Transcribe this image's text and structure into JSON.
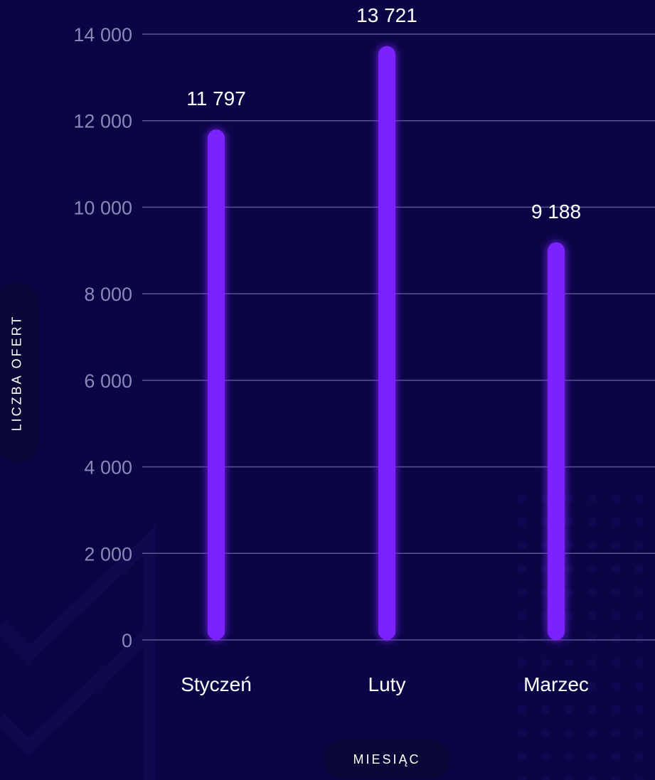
{
  "chart_data": {
    "type": "bar",
    "categories": [
      "Styczeń",
      "Luty",
      "Marzec"
    ],
    "values": [
      11797,
      13721,
      9188
    ],
    "value_labels": [
      "11 797",
      "13 721",
      "9 188"
    ],
    "title": "",
    "xlabel": "MIESIĄC",
    "ylabel": "LICZBA OFERT",
    "ylim": [
      0,
      14000
    ],
    "yticks": [
      0,
      2000,
      4000,
      6000,
      8000,
      10000,
      12000,
      14000
    ],
    "ytick_labels": [
      "0",
      "2 000",
      "4 000",
      "6 000",
      "8 000",
      "10 000",
      "12 000",
      "14 000"
    ],
    "grid": true,
    "legend": "none",
    "colors": {
      "background": "#0b0545",
      "bar": "#7b22ff",
      "bar_glow": "#5a1fd6",
      "grid": "#5b5690",
      "tick_text": "#8c87b8",
      "label_text": "#ffffff",
      "pill": "#0a0636"
    }
  }
}
